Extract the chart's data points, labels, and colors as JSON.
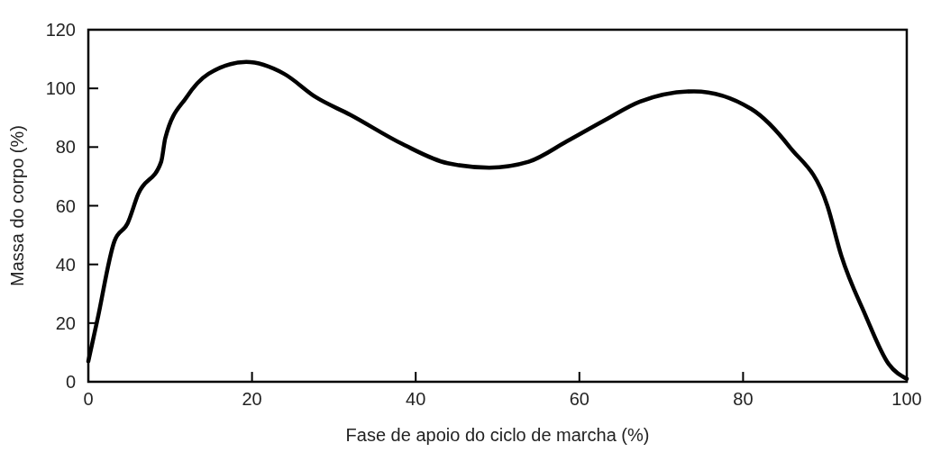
{
  "chart_data": {
    "type": "line",
    "xlabel": "Fase de apoio do ciclo de marcha (%)",
    "ylabel": "Massa do corpo (%)",
    "xlim": [
      0,
      100
    ],
    "ylim": [
      0,
      120
    ],
    "xticks": [
      0,
      20,
      40,
      60,
      80,
      100
    ],
    "yticks": [
      0,
      20,
      40,
      60,
      80,
      100,
      120
    ],
    "x": [
      0,
      1.1,
      3.2,
      4.8,
      6.1,
      8.9,
      9.4,
      12,
      14.7,
      19.3,
      23.9,
      27.8,
      32,
      38.4,
      43.9,
      49,
      53.8,
      58.5,
      63,
      67.4,
      74,
      81,
      85.7,
      90.3,
      92,
      94.9,
      97.8,
      100
    ],
    "series": [
      {
        "color": "#000000",
        "values": [
          7,
          21,
          48,
          54,
          64,
          75,
          83,
          97,
          105,
          109,
          105,
          97,
          91,
          81,
          74.5,
          73,
          75,
          82,
          89,
          95.5,
          99,
          93,
          80,
          60,
          43,
          23,
          6,
          1
        ]
      }
    ],
    "marker": "none",
    "line_style": "solid",
    "grid": false
  }
}
